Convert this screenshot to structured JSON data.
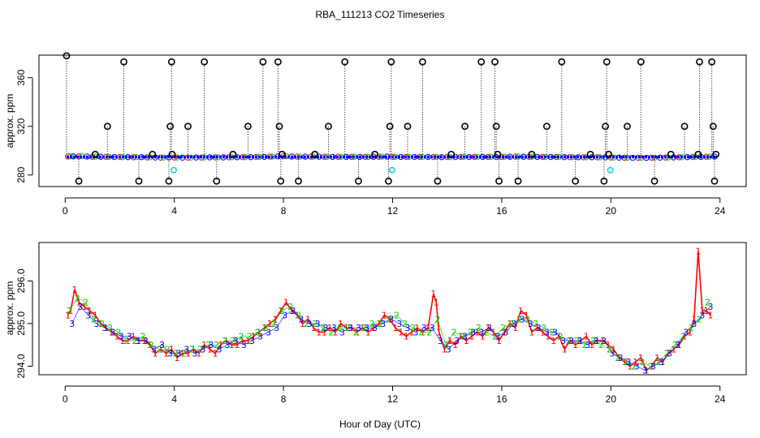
{
  "figure": {
    "title": "RBA_111213  CO2 Timeseries",
    "xlabel": "Hour of Day (UTC)"
  },
  "colors": {
    "series1": "#ff0000",
    "series2": "#00cc00",
    "series3": "#0000ff",
    "outlier": "#000000",
    "flagged": "#00cccc",
    "line": "#ff0000"
  },
  "chart_data": [
    {
      "type": "scatter",
      "panel": "top",
      "ylabel": "approx. ppm",
      "xlim": [
        -0.96,
        24.96
      ],
      "ylim": [
        270.5,
        378.5
      ],
      "xticks": [
        0,
        4,
        8,
        12,
        16,
        20,
        24
      ],
      "yticks": [
        280,
        320,
        360
      ],
      "baseline_series": [
        {
          "name": "1",
          "marker": "1",
          "x": [
            0.1,
            0.5,
            1.0,
            1.5,
            2.0,
            2.5,
            3.0,
            3.5,
            4.0,
            4.5,
            5.0,
            5.5,
            6.0,
            6.5,
            7.0,
            7.5,
            8.0,
            8.5,
            9.0,
            9.5,
            10.0,
            10.5,
            11.0,
            11.5,
            12.0,
            12.5,
            13.0,
            13.5,
            14.0,
            14.5,
            15.0,
            15.5,
            16.0,
            16.5,
            17.0,
            17.5,
            18.0,
            18.5,
            19.0,
            19.5,
            20.0,
            20.5,
            21.0,
            21.5,
            22.0,
            22.5,
            23.0,
            23.5
          ],
          "y": [
            295.2,
            295.3,
            295.0,
            294.9,
            294.8,
            294.6,
            294.5,
            294.3,
            294.4,
            294.3,
            294.4,
            294.5,
            294.6,
            294.7,
            294.8,
            295.1,
            295.4,
            295.2,
            295.1,
            295.0,
            295.0,
            294.9,
            294.9,
            295.0,
            294.9,
            294.8,
            294.9,
            294.8,
            294.8,
            294.9,
            294.9,
            294.9,
            294.9,
            295.1,
            295.0,
            294.9,
            294.8,
            294.7,
            294.6,
            294.6,
            294.4,
            294.2,
            294.1,
            294.2,
            294.4,
            294.6,
            294.8,
            295.0
          ]
        },
        {
          "name": "2",
          "marker": "2",
          "x": [
            0.2,
            0.6,
            1.1,
            1.6,
            2.1,
            2.6,
            3.1,
            3.6,
            4.1,
            4.6,
            5.1,
            5.6,
            6.1,
            6.6,
            7.1,
            7.6,
            8.1,
            8.6,
            9.1,
            9.6,
            10.1,
            10.6,
            11.1,
            11.6,
            12.1,
            12.6,
            13.1,
            13.6,
            14.1,
            14.6,
            15.1,
            15.6,
            16.1,
            16.6,
            17.1,
            17.6,
            18.1,
            18.6,
            19.1,
            19.6,
            20.1,
            20.6,
            21.1,
            21.6,
            22.1,
            22.6,
            23.1,
            23.6
          ],
          "y": [
            295.4,
            295.5,
            295.1,
            294.9,
            294.7,
            294.7,
            294.6,
            294.4,
            294.4,
            294.3,
            294.5,
            294.5,
            294.6,
            294.7,
            294.9,
            295.1,
            295.5,
            295.1,
            295.1,
            295.0,
            294.9,
            295.0,
            294.9,
            295.1,
            295.0,
            294.9,
            294.8,
            294.9,
            294.7,
            294.9,
            294.9,
            295.0,
            295.0,
            295.2,
            295.0,
            294.8,
            294.8,
            294.7,
            294.6,
            294.5,
            294.4,
            294.2,
            294.1,
            294.2,
            294.4,
            294.6,
            294.9,
            295.0
          ]
        },
        {
          "name": "3",
          "marker": "3",
          "x": [
            0.3,
            0.8,
            1.3,
            1.8,
            2.3,
            2.8,
            3.3,
            3.8,
            4.3,
            4.8,
            5.3,
            5.8,
            6.3,
            6.8,
            7.3,
            7.8,
            8.3,
            8.8,
            9.3,
            9.8,
            10.3,
            10.8,
            11.3,
            11.8,
            12.3,
            12.8,
            13.3,
            13.8,
            14.3,
            14.8,
            15.3,
            15.8,
            16.3,
            16.8,
            17.3,
            17.8,
            18.3,
            18.8,
            19.3,
            19.8,
            20.3,
            20.8,
            21.3,
            21.8,
            22.3,
            22.8,
            23.3,
            23.8
          ],
          "y": [
            295.3,
            295.2,
            295.0,
            294.8,
            294.7,
            294.7,
            294.4,
            294.4,
            294.3,
            294.4,
            294.5,
            294.5,
            294.6,
            294.7,
            294.9,
            295.3,
            295.2,
            295.1,
            295.1,
            294.9,
            294.9,
            294.9,
            295.0,
            295.1,
            294.9,
            294.8,
            294.9,
            294.7,
            294.8,
            294.8,
            294.9,
            294.8,
            295.0,
            295.0,
            294.9,
            294.8,
            294.7,
            294.6,
            294.6,
            294.5,
            294.3,
            294.1,
            294.1,
            294.3,
            294.5,
            294.7,
            294.9,
            295.2
          ]
        }
      ],
      "outliers": {
        "x": [
          0.05,
          0.5,
          1.1,
          1.55,
          2.15,
          2.7,
          3.2,
          3.8,
          3.85,
          3.9,
          3.92,
          4.5,
          5.1,
          5.55,
          6.15,
          6.7,
          7.25,
          7.8,
          7.85,
          7.9,
          7.95,
          8.55,
          9.15,
          9.65,
          10.25,
          10.75,
          11.35,
          11.85,
          11.9,
          11.95,
          12.55,
          13.1,
          13.65,
          14.15,
          14.65,
          15.25,
          15.75,
          15.8,
          15.85,
          15.9,
          16.6,
          17.1,
          17.65,
          18.2,
          18.7,
          19.25,
          19.75,
          19.8,
          19.85,
          19.92,
          20.6,
          21.1,
          21.6,
          22.2,
          22.7,
          23.2,
          23.25,
          23.7,
          23.75,
          23.8,
          23.85
        ],
        "y": [
          378,
          275,
          297,
          320,
          373,
          275,
          297,
          275,
          320,
          373,
          297,
          320,
          373,
          275,
          297,
          320,
          373,
          373,
          320,
          275,
          297,
          275,
          297,
          320,
          373,
          275,
          297,
          275,
          320,
          373,
          320,
          373,
          275,
          297,
          320,
          373,
          373,
          320,
          297,
          275,
          275,
          297,
          320,
          373,
          275,
          297,
          275,
          320,
          373,
          297,
          320,
          373,
          275,
          297,
          320,
          297,
          373,
          373,
          320,
          275,
          297
        ]
      },
      "flagged": {
        "x": [
          3.98,
          11.98,
          19.98
        ],
        "y": [
          284,
          284,
          284
        ]
      }
    },
    {
      "type": "line",
      "panel": "bottom",
      "ylabel": "approx. ppm",
      "xlim": [
        -0.96,
        24.96
      ],
      "ylim": [
        293.8,
        296.9
      ],
      "xticks": [
        0,
        4,
        8,
        12,
        16,
        20,
        24
      ],
      "yticks": [
        294.0,
        295.0,
        296.0
      ],
      "ytick_labels": [
        "294.0",
        "295.0",
        "296.0"
      ],
      "series": [
        {
          "name": "1",
          "marker": "1",
          "x": [
            0.1,
            0.2,
            0.35,
            0.5,
            0.7,
            0.9,
            1.1,
            1.3,
            1.5,
            1.7,
            1.9,
            2.1,
            2.3,
            2.5,
            2.7,
            2.9,
            3.1,
            3.3,
            3.5,
            3.7,
            3.9,
            4.1,
            4.3,
            4.5,
            4.7,
            4.9,
            5.1,
            5.3,
            5.5,
            5.7,
            5.9,
            6.1,
            6.3,
            6.5,
            6.7,
            6.9,
            7.1,
            7.3,
            7.5,
            7.7,
            7.9,
            8.1,
            8.3,
            8.5,
            8.7,
            8.9,
            9.1,
            9.3,
            9.5,
            9.7,
            9.9,
            10.1,
            10.3,
            10.5,
            10.7,
            10.9,
            11.1,
            11.3,
            11.5,
            11.7,
            11.9,
            12.1,
            12.3,
            12.5,
            12.7,
            12.9,
            13.1,
            13.3,
            13.5,
            13.6,
            13.7,
            13.9,
            14.1,
            14.3,
            14.5,
            14.7,
            14.9,
            15.1,
            15.3,
            15.5,
            15.7,
            15.9,
            16.1,
            16.3,
            16.5,
            16.7,
            16.9,
            17.1,
            17.3,
            17.5,
            17.7,
            17.9,
            18.1,
            18.3,
            18.5,
            18.7,
            18.9,
            19.1,
            19.3,
            19.5,
            19.7,
            19.9,
            20.1,
            20.3,
            20.5,
            20.7,
            20.9,
            21.1,
            21.3,
            21.5,
            21.7,
            21.9,
            22.1,
            22.3,
            22.5,
            22.7,
            22.9,
            23.05,
            23.2,
            23.35,
            23.5,
            23.65
          ],
          "y": [
            295.2,
            295.3,
            295.8,
            295.5,
            295.4,
            295.3,
            295.2,
            295.0,
            294.9,
            294.8,
            294.7,
            294.6,
            294.6,
            294.7,
            294.6,
            294.6,
            294.5,
            294.3,
            294.4,
            294.3,
            294.4,
            294.2,
            294.3,
            294.3,
            294.4,
            294.3,
            294.5,
            294.4,
            294.3,
            294.5,
            294.6,
            294.5,
            294.5,
            294.6,
            294.6,
            294.7,
            294.8,
            294.9,
            295.0,
            295.1,
            295.3,
            295.5,
            295.3,
            295.2,
            295.0,
            295.1,
            294.9,
            294.8,
            294.8,
            294.9,
            294.8,
            295.0,
            294.9,
            294.9,
            294.8,
            294.9,
            294.8,
            294.9,
            295.0,
            295.2,
            295.1,
            294.9,
            294.8,
            294.7,
            294.8,
            294.9,
            294.8,
            294.9,
            295.7,
            295.5,
            294.8,
            294.4,
            294.6,
            294.5,
            294.7,
            294.6,
            294.7,
            294.8,
            294.7,
            294.9,
            294.8,
            294.6,
            294.8,
            295.0,
            294.9,
            295.3,
            295.2,
            294.8,
            294.9,
            294.8,
            294.7,
            294.6,
            294.7,
            294.4,
            294.6,
            294.5,
            294.6,
            294.7,
            294.5,
            294.6,
            294.6,
            294.5,
            294.4,
            294.2,
            294.1,
            294.0,
            294.1,
            294.2,
            293.9,
            294.0,
            294.2,
            294.1,
            294.3,
            294.4,
            294.5,
            294.7,
            294.8,
            295.1,
            296.7,
            295.3,
            295.3,
            295.2
          ]
        },
        {
          "name": "2",
          "marker": "2",
          "x": [
            0.15,
            0.45,
            0.75,
            1.05,
            1.35,
            1.65,
            1.95,
            2.25,
            2.55,
            2.85,
            3.15,
            3.45,
            3.75,
            4.05,
            4.35,
            4.65,
            4.95,
            5.25,
            5.55,
            5.85,
            6.15,
            6.45,
            6.75,
            7.05,
            7.35,
            7.65,
            7.95,
            8.25,
            8.55,
            8.85,
            9.15,
            9.45,
            9.75,
            10.05,
            10.35,
            10.65,
            10.95,
            11.25,
            11.55,
            11.85,
            12.15,
            12.45,
            12.75,
            13.05,
            13.35,
            13.65,
            13.95,
            14.25,
            14.55,
            14.85,
            15.15,
            15.45,
            15.75,
            16.05,
            16.35,
            16.65,
            16.95,
            17.25,
            17.55,
            17.85,
            18.15,
            18.45,
            18.75,
            19.05,
            19.35,
            19.65,
            19.95,
            20.25,
            20.55,
            20.85,
            21.15,
            21.45,
            21.75,
            22.05,
            22.35,
            22.65,
            22.95,
            23.25,
            23.55
          ],
          "y": [
            295.3,
            295.6,
            295.5,
            295.1,
            295.0,
            294.9,
            294.8,
            294.6,
            294.6,
            294.7,
            294.5,
            294.4,
            294.4,
            294.3,
            294.3,
            294.4,
            294.4,
            294.5,
            294.5,
            294.6,
            294.6,
            294.7,
            294.7,
            294.8,
            294.9,
            295.0,
            295.3,
            295.4,
            295.2,
            295.0,
            295.0,
            294.9,
            294.8,
            294.9,
            294.9,
            294.8,
            294.9,
            295.0,
            295.0,
            295.1,
            295.2,
            295.0,
            294.9,
            294.8,
            294.8,
            295.1,
            294.5,
            294.8,
            294.7,
            294.8,
            294.9,
            294.8,
            294.7,
            294.9,
            295.0,
            295.1,
            295.1,
            295.0,
            294.9,
            294.8,
            294.7,
            294.6,
            294.6,
            294.5,
            294.6,
            294.5,
            294.4,
            294.2,
            294.1,
            294.0,
            294.1,
            294.0,
            294.1,
            294.3,
            294.5,
            294.7,
            294.9,
            295.1,
            295.5
          ]
        },
        {
          "name": "3",
          "marker": "3",
          "x": [
            0.25,
            0.55,
            0.85,
            1.15,
            1.45,
            1.75,
            2.05,
            2.35,
            2.65,
            2.95,
            3.25,
            3.55,
            3.85,
            4.15,
            4.45,
            4.75,
            5.05,
            5.35,
            5.65,
            5.95,
            6.25,
            6.55,
            6.85,
            7.15,
            7.45,
            7.75,
            8.05,
            8.35,
            8.65,
            8.95,
            9.25,
            9.55,
            9.85,
            10.15,
            10.45,
            10.75,
            11.05,
            11.35,
            11.65,
            11.95,
            12.25,
            12.55,
            12.85,
            13.15,
            13.45,
            13.75,
            14.05,
            14.35,
            14.65,
            14.95,
            15.25,
            15.55,
            15.85,
            16.15,
            16.45,
            16.75,
            17.05,
            17.35,
            17.65,
            17.95,
            18.25,
            18.55,
            18.85,
            19.15,
            19.45,
            19.75,
            20.05,
            20.35,
            20.65,
            20.95,
            21.25,
            21.55,
            21.85,
            22.15,
            22.45,
            22.75,
            23.05,
            23.35,
            23.65
          ],
          "y": [
            295.0,
            295.4,
            295.2,
            295.0,
            294.9,
            294.8,
            294.7,
            294.7,
            294.6,
            294.6,
            294.4,
            294.5,
            294.3,
            294.3,
            294.4,
            294.3,
            294.4,
            294.5,
            294.4,
            294.5,
            294.6,
            294.5,
            294.6,
            294.7,
            294.8,
            294.9,
            295.2,
            295.3,
            295.1,
            295.0,
            295.0,
            294.9,
            294.9,
            294.8,
            294.9,
            294.9,
            294.9,
            294.9,
            295.0,
            295.1,
            295.0,
            294.9,
            294.8,
            294.9,
            294.9,
            294.6,
            294.4,
            294.6,
            294.7,
            294.8,
            294.8,
            294.9,
            294.7,
            294.8,
            295.0,
            295.1,
            295.0,
            294.9,
            294.8,
            294.8,
            294.6,
            294.6,
            294.6,
            294.5,
            294.6,
            294.6,
            294.3,
            294.2,
            294.1,
            294.0,
            293.9,
            294.0,
            294.1,
            294.3,
            294.5,
            294.8,
            295.0,
            295.2,
            295.4
          ]
        }
      ]
    }
  ]
}
